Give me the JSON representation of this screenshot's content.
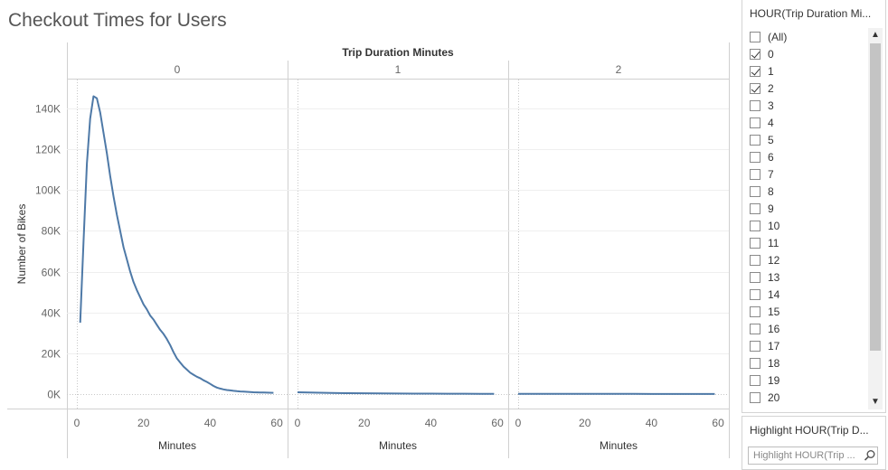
{
  "title": "Checkout Times for Users",
  "chart_data": {
    "type": "line",
    "column_header": "Trip Duration Minutes",
    "ylabel": "Number of Bikes",
    "xlabel": "Minutes",
    "ylim": [
      0,
      150000
    ],
    "yticks": [
      0,
      20000,
      40000,
      60000,
      80000,
      100000,
      120000,
      140000
    ],
    "ytick_labels": [
      "0K",
      "20K",
      "40K",
      "60K",
      "80K",
      "100K",
      "120K",
      "140K"
    ],
    "xticks": [
      0,
      20,
      40,
      60
    ],
    "xlim": [
      -3,
      63
    ],
    "line_color": "#4e79a7",
    "panels": [
      {
        "header": "0",
        "x": [
          1,
          2,
          3,
          4,
          5,
          6,
          7,
          8,
          9,
          10,
          11,
          12,
          13,
          14,
          15,
          16,
          17,
          18,
          19,
          20,
          21,
          22,
          23,
          24,
          25,
          26,
          27,
          28,
          29,
          30,
          31,
          32,
          33,
          34,
          35,
          36,
          37,
          38,
          39,
          40,
          41,
          42,
          43,
          44,
          45,
          46,
          47,
          48,
          49,
          50,
          51,
          52,
          53,
          54,
          55,
          56,
          57,
          58,
          59
        ],
        "y": [
          35000,
          75000,
          113000,
          135000,
          146000,
          145000,
          138000,
          128000,
          118000,
          107000,
          97000,
          88000,
          80000,
          72000,
          66000,
          60000,
          55000,
          51000,
          47500,
          44000,
          41500,
          38500,
          36500,
          34000,
          31500,
          29500,
          27000,
          24000,
          20500,
          17500,
          15500,
          13500,
          12000,
          10500,
          9500,
          8500,
          7800,
          6800,
          6000,
          5000,
          4000,
          3200,
          2700,
          2300,
          2000,
          1800,
          1600,
          1400,
          1300,
          1200,
          1100,
          1000,
          900,
          850,
          800,
          750,
          700,
          650,
          600
        ]
      },
      {
        "header": "1",
        "x": [
          0,
          5,
          10,
          15,
          20,
          25,
          30,
          35,
          40,
          45,
          50,
          55,
          59
        ],
        "y": [
          900,
          700,
          550,
          450,
          380,
          320,
          280,
          240,
          210,
          180,
          160,
          140,
          130
        ]
      },
      {
        "header": "2",
        "x": [
          0,
          5,
          10,
          15,
          20,
          25,
          30,
          35,
          40,
          45,
          50,
          55,
          59
        ],
        "y": [
          120,
          110,
          100,
          90,
          85,
          80,
          75,
          70,
          65,
          60,
          55,
          50,
          50
        ]
      }
    ]
  },
  "filter": {
    "title": "HOUR(Trip Duration Mi...",
    "items": [
      {
        "label": "(All)",
        "checked": false
      },
      {
        "label": "0",
        "checked": true
      },
      {
        "label": "1",
        "checked": true
      },
      {
        "label": "2",
        "checked": true
      },
      {
        "label": "3",
        "checked": false
      },
      {
        "label": "4",
        "checked": false
      },
      {
        "label": "5",
        "checked": false
      },
      {
        "label": "6",
        "checked": false
      },
      {
        "label": "7",
        "checked": false
      },
      {
        "label": "8",
        "checked": false
      },
      {
        "label": "9",
        "checked": false
      },
      {
        "label": "10",
        "checked": false
      },
      {
        "label": "11",
        "checked": false
      },
      {
        "label": "12",
        "checked": false
      },
      {
        "label": "13",
        "checked": false
      },
      {
        "label": "14",
        "checked": false
      },
      {
        "label": "15",
        "checked": false
      },
      {
        "label": "16",
        "checked": false
      },
      {
        "label": "17",
        "checked": false
      },
      {
        "label": "18",
        "checked": false
      },
      {
        "label": "19",
        "checked": false
      },
      {
        "label": "20",
        "checked": false
      }
    ],
    "scroll_up_icon": "chevron-up-icon",
    "scroll_down_icon": "chevron-down-icon"
  },
  "highlight": {
    "title": "Highlight HOUR(Trip D...",
    "placeholder": "Highlight HOUR(Trip ...",
    "icon": "search-icon"
  }
}
